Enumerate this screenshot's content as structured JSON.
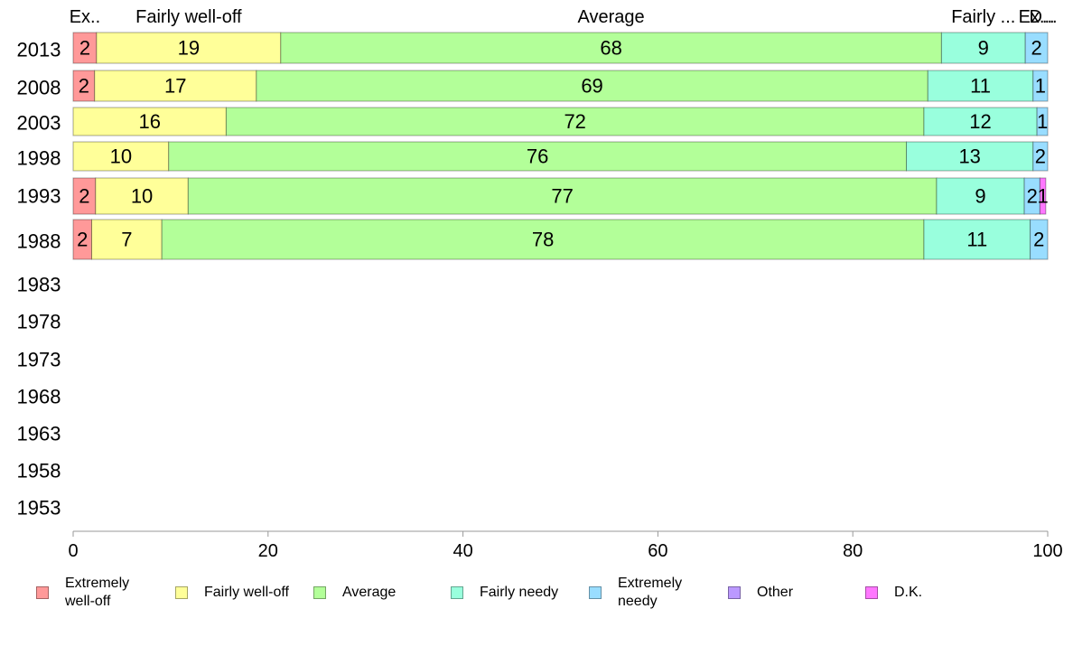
{
  "chart_data": {
    "type": "bar",
    "orientation": "horizontal",
    "stacked": true,
    "x_axis": {
      "ticks": [
        "0",
        "20",
        "40",
        "60",
        "80",
        "100"
      ],
      "range": [
        0,
        100
      ]
    },
    "categories": [
      "2013",
      "2008",
      "2003",
      "1998",
      "1993",
      "1988",
      "1983",
      "1978",
      "1973",
      "1968",
      "1963",
      "1958",
      "1953"
    ],
    "series": [
      {
        "name": "Extremely\nwell-off",
        "short": "Ex..",
        "color": "#ff9999",
        "values": [
          2.4,
          2.2,
          0,
          0,
          2.3,
          1.9,
          null,
          null,
          null,
          null,
          null,
          null,
          null
        ],
        "labels": [
          "2",
          "2",
          "",
          "",
          "2",
          "2",
          "",
          "",
          "",
          "",
          "",
          "",
          ""
        ]
      },
      {
        "name": "Fairly well-off",
        "short": "Fairly well-off",
        "color": "#ffff99",
        "values": [
          18.9,
          16.6,
          15.7,
          9.8,
          9.5,
          7.2,
          null,
          null,
          null,
          null,
          null,
          null,
          null
        ],
        "labels": [
          "19",
          "17",
          "16",
          "10",
          "10",
          "7",
          "",
          "",
          "",
          "",
          "",
          "",
          ""
        ]
      },
      {
        "name": "Average",
        "short": "Average",
        "color": "#b3ff99",
        "values": [
          67.8,
          68.9,
          71.6,
          75.7,
          76.8,
          78.2,
          null,
          null,
          null,
          null,
          null,
          null,
          null
        ],
        "labels": [
          "68",
          "69",
          "72",
          "76",
          "77",
          "78",
          "",
          "",
          "",
          "",
          "",
          "",
          ""
        ]
      },
      {
        "name": "Fairly needy",
        "short": "Fairly ...",
        "color": "#99ffdd",
        "values": [
          8.6,
          10.8,
          11.6,
          13.0,
          9.0,
          10.9,
          null,
          null,
          null,
          null,
          null,
          null,
          null
        ],
        "labels": [
          "9",
          "11",
          "12",
          "13",
          "9",
          "11",
          "",
          "",
          "",
          "",
          "",
          "",
          ""
        ]
      },
      {
        "name": "Extremely\nneedy",
        "short": "Ex...",
        "color": "#99ddff",
        "values": [
          2.3,
          1.5,
          1.1,
          1.5,
          1.6,
          1.8,
          null,
          null,
          null,
          null,
          null,
          null,
          null
        ],
        "labels": [
          "2",
          "1",
          "1",
          "2",
          "2",
          "2",
          "",
          "",
          "",
          "",
          "",
          "",
          ""
        ]
      },
      {
        "name": "Other",
        "short": "",
        "color": "#bb99ff",
        "values": [
          0,
          0,
          0,
          0,
          0,
          0,
          null,
          null,
          null,
          null,
          null,
          null,
          null
        ],
        "labels": [
          "",
          "",
          "",
          "",
          "",
          "",
          "",
          "",
          "",
          "",
          "",
          "",
          ""
        ]
      },
      {
        "name": "D.K.",
        "short": "D...",
        "color": "#ff77ff",
        "values": [
          0,
          0,
          0,
          0,
          0.6,
          0,
          null,
          null,
          null,
          null,
          null,
          null,
          null
        ],
        "labels": [
          "",
          "",
          "",
          "",
          "1",
          "",
          "",
          "",
          "",
          "",
          "",
          "",
          ""
        ]
      }
    ],
    "legend": {
      "position": "bottom"
    }
  }
}
